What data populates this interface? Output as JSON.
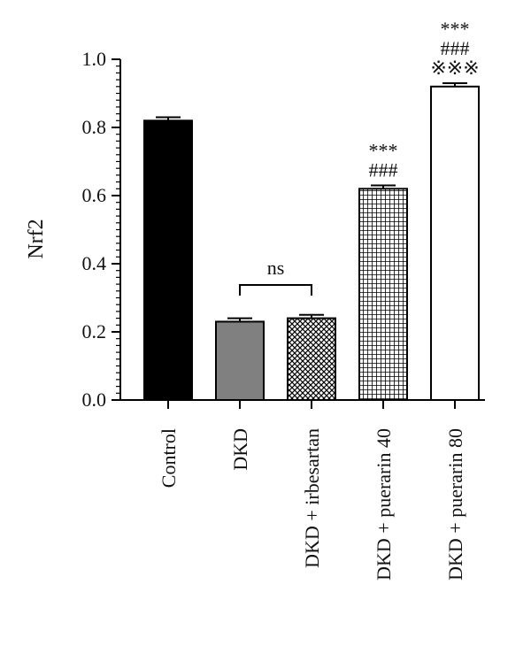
{
  "chart_data": {
    "type": "bar",
    "ylabel": "Nrf2",
    "ylim": [
      0,
      1.0
    ],
    "yticks": [
      "0.0",
      "0.2",
      "0.4",
      "0.6",
      "0.8",
      "1.0"
    ],
    "grid": false,
    "categories": [
      "Control",
      "DKD",
      "DKD + irbesartan",
      "DKD + puerarin 40",
      "DKD + puerarin 80"
    ],
    "values": [
      0.82,
      0.23,
      0.24,
      0.62,
      0.92
    ],
    "errors": [
      0.01,
      0.01,
      0.01,
      0.01,
      0.01
    ],
    "fills": [
      "solid-black",
      "solid-gray",
      "crosshatch",
      "grid",
      "white"
    ],
    "colors": {
      "control": "#000000",
      "dkd": "#808080",
      "outline": "#000000"
    },
    "significance": [
      {
        "index": 4,
        "lines": [
          "***",
          "###",
          "※※※"
        ]
      },
      {
        "index": 3,
        "lines": [
          "***",
          "###"
        ]
      }
    ],
    "bracket": {
      "from": 1,
      "to": 2,
      "label": "ns"
    }
  }
}
